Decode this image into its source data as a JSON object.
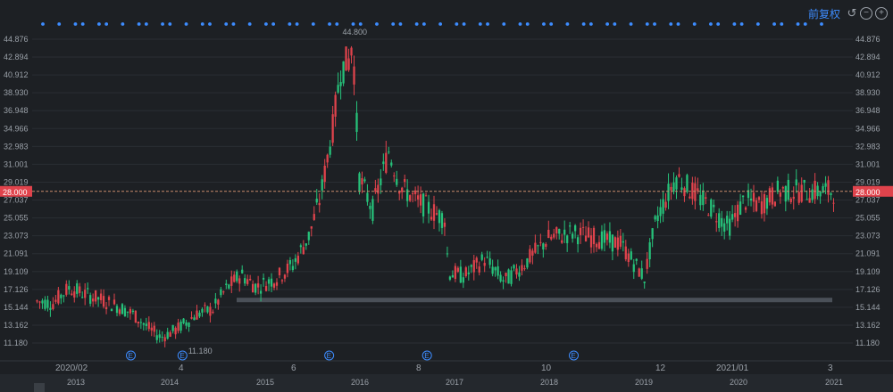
{
  "toolbar": {
    "rights_label": "前复权",
    "reset_icon": "reset-icon",
    "zoom_out_icon": "zoom-out-icon",
    "zoom_in_icon": "zoom-in-icon"
  },
  "colors": {
    "background": "#1d2024",
    "up": "#e0434c",
    "down": "#26c27a",
    "axis_text": "#9aa0a8",
    "price_line": "#c98a6a",
    "price_badge": "#e0434c",
    "event_dot": "#3d8cff",
    "support_band": "#4a5058"
  },
  "chart_data": {
    "type": "candlestick",
    "ylim": [
      9.5,
      46.5
    ],
    "y_ticks": [
      "44.876",
      "42.894",
      "40.912",
      "38.930",
      "36.948",
      "34.966",
      "32.983",
      "31.001",
      "29.019",
      "27.037",
      "25.055",
      "23.073",
      "21.091",
      "19.109",
      "17.126",
      "15.144",
      "13.162",
      "11.180"
    ],
    "current_price": "28.000",
    "high_label": "44.800",
    "low_label": "11.180",
    "x_labels_upper": [
      "2020/02",
      "4",
      "6",
      "8",
      "10",
      "12",
      "2021/01",
      "3"
    ],
    "x_labels_lower": [
      "2013",
      "2014",
      "2015",
      "2016",
      "2017",
      "2018",
      "2019",
      "2020",
      "2021"
    ],
    "event_marker_label": "E",
    "event_markers": 5,
    "support_band_price": 16.0,
    "top_dot_markers": 62,
    "price_path": [
      [
        0,
        15.8
      ],
      [
        0.02,
        15.6
      ],
      [
        0.04,
        17.3
      ],
      [
        0.06,
        16.6
      ],
      [
        0.08,
        16.0
      ],
      [
        0.1,
        15.3
      ],
      [
        0.12,
        14.4
      ],
      [
        0.14,
        12.8
      ],
      [
        0.155,
        11.8
      ],
      [
        0.175,
        12.7
      ],
      [
        0.2,
        14.4
      ],
      [
        0.22,
        14.9
      ],
      [
        0.235,
        17.0
      ],
      [
        0.255,
        18.8
      ],
      [
        0.275,
        17.4
      ],
      [
        0.3,
        18.4
      ],
      [
        0.32,
        19.8
      ],
      [
        0.34,
        23.0
      ],
      [
        0.355,
        27.5
      ],
      [
        0.37,
        35.0
      ],
      [
        0.38,
        41.5
      ],
      [
        0.39,
        42.5
      ],
      [
        0.395,
        44.8
      ],
      [
        0.403,
        29.5
      ],
      [
        0.42,
        26.0
      ],
      [
        0.44,
        32.5
      ],
      [
        0.455,
        28.5
      ],
      [
        0.475,
        27.0
      ],
      [
        0.5,
        25.5
      ],
      [
        0.51,
        25.0
      ],
      [
        0.515,
        19.0
      ],
      [
        0.535,
        18.6
      ],
      [
        0.56,
        20.5
      ],
      [
        0.585,
        18.0
      ],
      [
        0.61,
        20.0
      ],
      [
        0.64,
        22.8
      ],
      [
        0.67,
        23.4
      ],
      [
        0.7,
        22.8
      ],
      [
        0.73,
        22.2
      ],
      [
        0.76,
        18.4
      ],
      [
        0.775,
        25.0
      ],
      [
        0.8,
        29.6
      ],
      [
        0.82,
        28.0
      ],
      [
        0.845,
        26.0
      ],
      [
        0.865,
        24.0
      ],
      [
        0.885,
        27.0
      ],
      [
        0.905,
        26.5
      ],
      [
        0.93,
        28.1
      ],
      [
        0.935,
        28.0
      ]
    ]
  }
}
